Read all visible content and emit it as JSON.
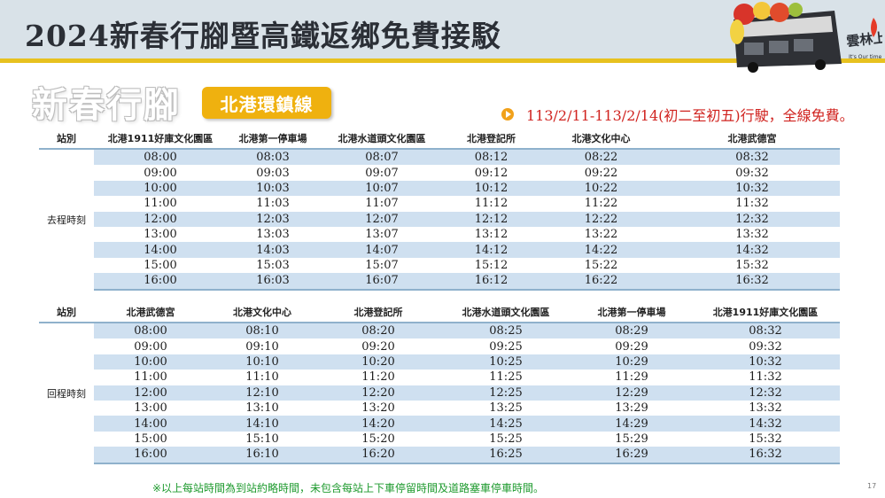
{
  "header": {
    "title": "2024新春行腳暨高鐵返鄉免費接駁",
    "logo_script": "雲林上場",
    "logo_tagline": "It's Our time"
  },
  "section_outline_text": "新春行腳",
  "route_badge": "北港環鎮線",
  "notice": "113/2/11-113/2/14(初二至初五)行駛，全線免費。",
  "outbound": {
    "station_header": "站別",
    "label": "去程時刻",
    "stations": [
      "北港1911好庫文化園區",
      "北港第一停車場",
      "北港水道頭文化園區",
      "北港登記所",
      "北港文化中心",
      "北港武德宮"
    ],
    "rows": [
      [
        "08:00",
        "08:03",
        "08:07",
        "08:12",
        "08:22",
        "08:32"
      ],
      [
        "09:00",
        "09:03",
        "09:07",
        "09:12",
        "09:22",
        "09:32"
      ],
      [
        "10:00",
        "10:03",
        "10:07",
        "10:12",
        "10:22",
        "10:32"
      ],
      [
        "11:00",
        "11:03",
        "11:07",
        "11:12",
        "11:22",
        "11:32"
      ],
      [
        "12:00",
        "12:03",
        "12:07",
        "12:12",
        "12:22",
        "12:32"
      ],
      [
        "13:00",
        "13:03",
        "13:07",
        "13:12",
        "13:22",
        "13:32"
      ],
      [
        "14:00",
        "14:03",
        "14:07",
        "14:12",
        "14:22",
        "14:32"
      ],
      [
        "15:00",
        "15:03",
        "15:07",
        "15:12",
        "15:22",
        "15:32"
      ],
      [
        "16:00",
        "16:03",
        "16:07",
        "16:12",
        "16:22",
        "16:32"
      ]
    ]
  },
  "return": {
    "station_header": "站別",
    "label": "回程時刻",
    "stations": [
      "北港武德宮",
      "北港文化中心",
      "北港登記所",
      "北港水道頭文化園區",
      "北港第一停車場",
      "北港1911好庫文化園區"
    ],
    "rows": [
      [
        "08:00",
        "08:10",
        "08:20",
        "08:25",
        "08:29",
        "08:32"
      ],
      [
        "09:00",
        "09:10",
        "09:20",
        "09:25",
        "09:29",
        "09:32"
      ],
      [
        "10:00",
        "10:10",
        "10:20",
        "10:25",
        "10:29",
        "10:32"
      ],
      [
        "11:00",
        "11:10",
        "11:20",
        "11:25",
        "11:29",
        "11:32"
      ],
      [
        "12:00",
        "12:10",
        "12:20",
        "12:25",
        "12:29",
        "12:32"
      ],
      [
        "13:00",
        "13:10",
        "13:20",
        "13:25",
        "13:29",
        "13:32"
      ],
      [
        "14:00",
        "14:10",
        "14:20",
        "14:25",
        "14:29",
        "14:32"
      ],
      [
        "15:00",
        "15:10",
        "15:20",
        "15:25",
        "15:29",
        "15:32"
      ],
      [
        "16:00",
        "16:10",
        "16:20",
        "16:25",
        "16:29",
        "16:32"
      ]
    ]
  },
  "footnote": "※以上每站時間為到站約略時間，未包含每站上下車停留時間及道路塞車停車時間。",
  "page_number": "17",
  "colors": {
    "header_bg": "#d9e2e8",
    "header_accent": "#e7c11f",
    "badge": "#efb10f",
    "notice_text": "#d0231f",
    "row_stripe": "#cfe0f0",
    "footnote": "#1e9a2e"
  }
}
